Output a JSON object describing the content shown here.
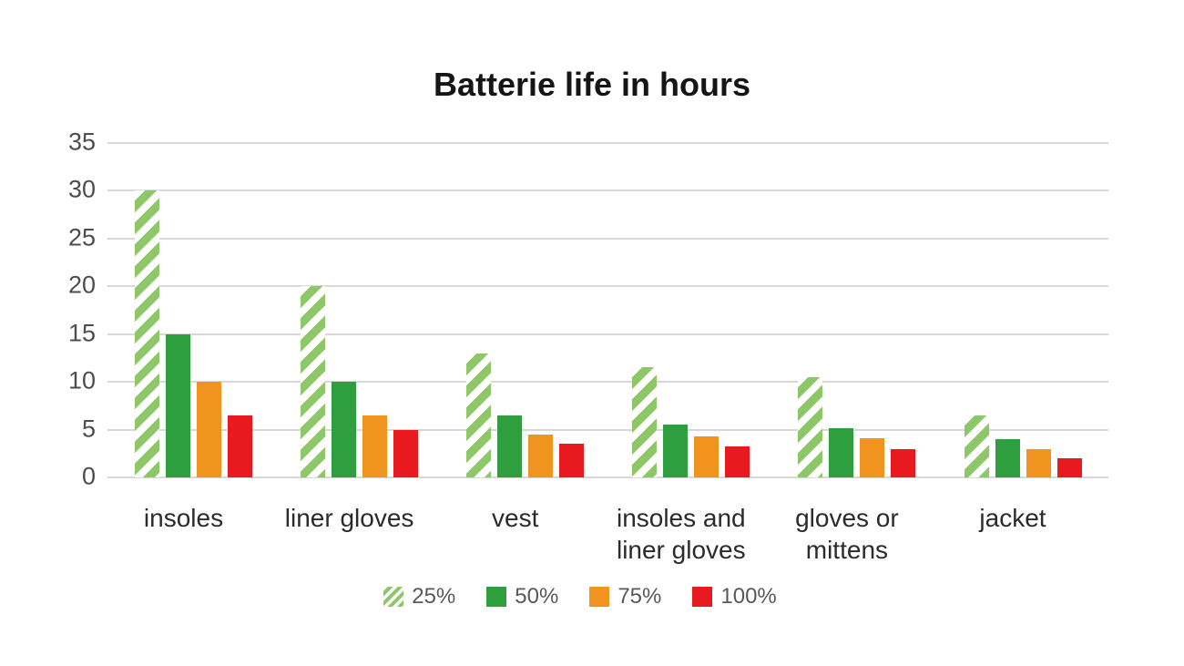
{
  "title": "Batterie life in hours",
  "chart_data": {
    "type": "bar",
    "title": "Batterie life in hours",
    "categories": [
      "insoles",
      "liner gloves",
      "vest",
      "insoles and liner gloves",
      "gloves or mittens",
      "jacket"
    ],
    "series": [
      {
        "name": "25%",
        "pattern": "diagonal-stripes",
        "color": "#8ec767",
        "values": [
          30,
          20,
          13,
          11.5,
          10.5,
          6.5
        ]
      },
      {
        "name": "50%",
        "pattern": "solid",
        "color": "#2f9e3e",
        "values": [
          15,
          10,
          6.5,
          5.5,
          5.2,
          4
        ]
      },
      {
        "name": "75%",
        "pattern": "solid",
        "color": "#f0941f",
        "values": [
          10,
          6.5,
          4.5,
          4.3,
          4.1,
          3
        ]
      },
      {
        "name": "100%",
        "pattern": "solid",
        "color": "#e8191f",
        "values": [
          6.5,
          5,
          3.5,
          3.2,
          3,
          2
        ]
      }
    ],
    "xlabel": "",
    "ylabel": "",
    "ylim": [
      0,
      35
    ],
    "yticks": [
      0,
      5,
      10,
      15,
      20,
      25,
      30,
      35
    ],
    "grid": "horizontal",
    "legend_position": "bottom",
    "legend_labels": [
      "25%",
      "50%",
      "75%",
      "100%"
    ]
  },
  "colors": {
    "background": "#ffffff",
    "grid": "#d8d8d8",
    "title_text": "#151515",
    "axis_text": "#4d4d4d",
    "category_text": "#2b2b2b",
    "legend_text": "#595959"
  }
}
